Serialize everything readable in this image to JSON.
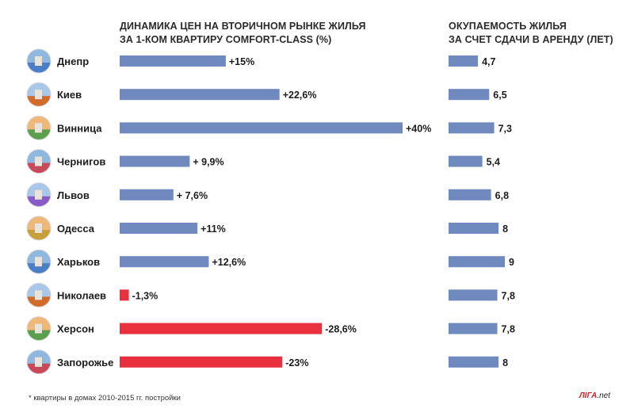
{
  "colors": {
    "positive": "#7089bf",
    "negative": "#e8303f",
    "payback": "#7089bf",
    "icon_palette": [
      "#4a7fc8",
      "#d26a2a",
      "#5aa04c",
      "#c84a5a",
      "#8a5ac8",
      "#c8a03a"
    ]
  },
  "titles": {
    "left_line1": "ДИНАМИКА ЦЕН НА ВТОРИЧНОМ РЫНКЕ ЖИЛЬЯ",
    "left_line2": "ЗА 1-КОМ КВАРТИРУ COMFORT-CLASS (%)",
    "right_line1": "ОКУПАЕМОСТЬ ЖИЛЬЯ",
    "right_line2": "ЗА СЧЕТ СДАЧИ В АРЕНДУ (ЛЕТ)"
  },
  "footnote": "* квартиры в домах 2010-2015 гг. постройки",
  "logo": {
    "brand": "ЛIГА",
    "suffix": ".net"
  },
  "chart_data": [
    {
      "type": "bar",
      "title": "ДИНАМИКА ЦЕН НА ВТОРИЧНОМ РЫНКЕ ЖИЛЬЯ ЗА 1-КОМ КВАРТИРУ COMFORT-CLASS (%)",
      "categories": [
        "Днепр",
        "Киев",
        "Винница",
        "Чернигов",
        "Львов",
        "Одесса",
        "Харьков",
        "Николаев",
        "Херсон",
        "Запорожье"
      ],
      "values": [
        15,
        22.6,
        40,
        9.9,
        7.6,
        11,
        12.6,
        -1.3,
        -28.6,
        -23
      ],
      "labels": [
        "+15%",
        "+22,6%",
        "+40%",
        "+ 9,9%",
        "+ 7,6%",
        "+11%",
        "+12,6%",
        "-1,3%",
        "-28,6%",
        "-23%"
      ],
      "orientation": "horizontal",
      "grid": false
    },
    {
      "type": "bar",
      "title": "ОКУПАЕМОСТЬ ЖИЛЬЯ ЗА СЧЕТ СДАЧИ В АРЕНДУ (ЛЕТ)",
      "categories": [
        "Днепр",
        "Киев",
        "Винница",
        "Чернигов",
        "Львов",
        "Одесса",
        "Харьков",
        "Николаев",
        "Херсон",
        "Запорожье"
      ],
      "values": [
        4.7,
        6.5,
        7.3,
        5.4,
        6.8,
        8,
        9,
        7.8,
        7.8,
        8
      ],
      "labels": [
        "4,7",
        "6,5",
        "7,3",
        "5,4",
        "6,8",
        "8",
        "9",
        "7,8",
        "7,8",
        "8"
      ],
      "orientation": "horizontal",
      "grid": false
    }
  ]
}
